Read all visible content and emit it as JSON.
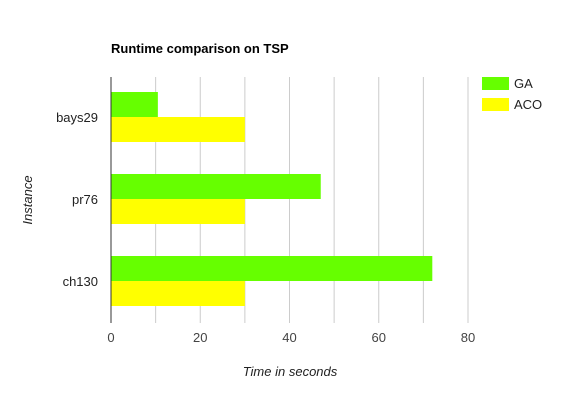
{
  "chart_data": {
    "type": "bar",
    "orientation": "horizontal",
    "title": "Runtime comparison on TSP",
    "xlabel": "Time in seconds",
    "ylabel": "Instance",
    "categories": [
      "bays29",
      "pr76",
      "ch130"
    ],
    "series": [
      {
        "name": "GA",
        "color": "#66ff00",
        "values": [
          10.5,
          47,
          72
        ]
      },
      {
        "name": "ACO",
        "color": "#ffff00",
        "values": [
          30,
          30,
          30
        ]
      }
    ],
    "xlim": [
      0,
      80
    ],
    "xticks": [
      0,
      20,
      40,
      60,
      80
    ],
    "grid": true,
    "legend": "top-right"
  }
}
